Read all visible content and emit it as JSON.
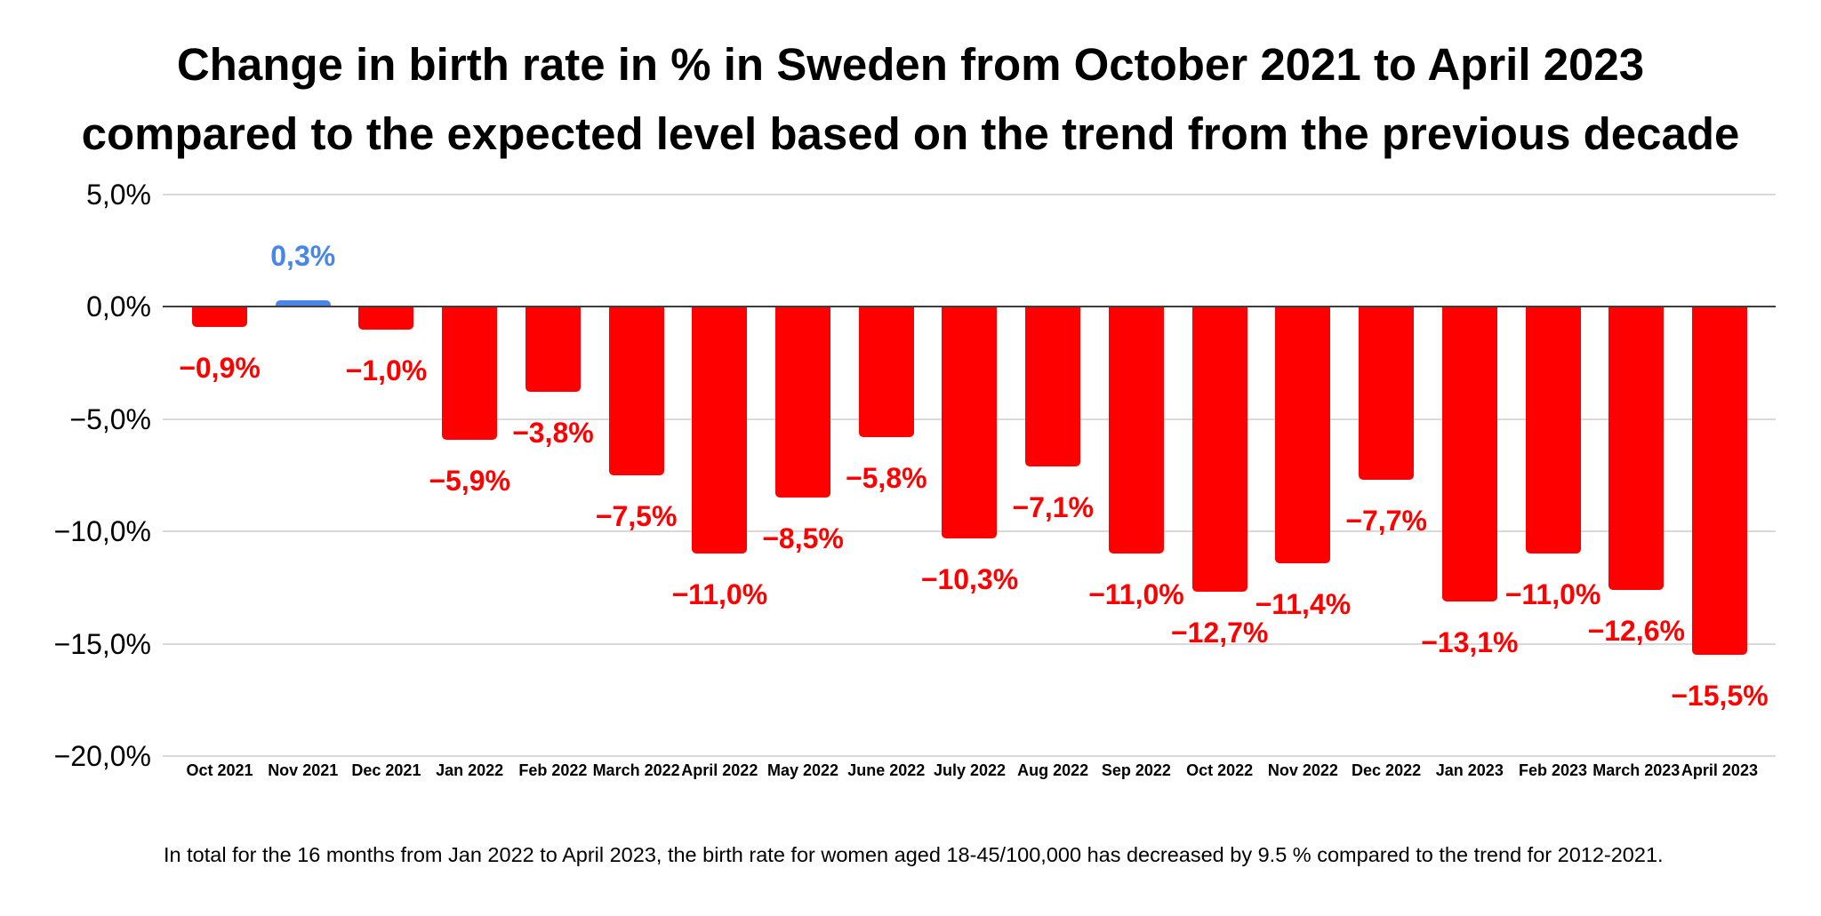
{
  "title": {
    "line1": "Change in birth rate in % in Sweden from October 2021 to April 2023",
    "line2": "compared to the expected level based on the trend from the previous decade"
  },
  "footer_note": "In total for the 16 months from Jan 2022 to April 2023, the birth rate for women aged 18-45/100,000 has decreased by 9.5 % compared to the trend for 2012-2021.",
  "colors": {
    "negative_bar": "#ff0000",
    "positive_bar": "#4a86e8",
    "gridline": "#d9d9d9",
    "zero_line": "#3d3d3d",
    "text": "#000000"
  },
  "chart_data": {
    "type": "bar",
    "title": "Change in birth rate in % in Sweden from October 2021 to April 2023 compared to the expected level based on the trend from the previous decade",
    "xlabel": "",
    "ylabel": "",
    "ylim": [
      -20,
      5
    ],
    "grid": true,
    "legend": false,
    "categories": [
      "Oct 2021",
      "Nov 2021",
      "Dec 2021",
      "Jan 2022",
      "Feb 2022",
      "March 2022",
      "April 2022",
      "May 2022",
      "June 2022",
      "July 2022",
      "Aug 2022",
      "Sep 2022",
      "Oct 2022",
      "Nov 2022",
      "Dec 2022",
      "Jan 2023",
      "Feb 2023",
      "March 2023",
      "April 2023"
    ],
    "values": [
      -0.9,
      0.3,
      -1.0,
      -5.9,
      -3.8,
      -7.5,
      -11.0,
      -8.5,
      -5.8,
      -10.3,
      -7.1,
      -11.0,
      -12.7,
      -11.4,
      -7.7,
      -13.1,
      -11.0,
      -12.6,
      -15.5
    ],
    "value_labels": [
      "−0,9%",
      "0,3%",
      "−1,0%",
      "−5,9%",
      "−3,8%",
      "−7,5%",
      "−11,0%",
      "−8,5%",
      "−5,8%",
      "−10,3%",
      "−7,1%",
      "−11,0%",
      "−12,7%",
      "−11,4%",
      "−7,7%",
      "−13,1%",
      "−11,0%",
      "−12,6%",
      "−15,5%"
    ],
    "y_ticks": [
      {
        "value": 5,
        "label": "5,0%"
      },
      {
        "value": 0,
        "label": "0,0%"
      },
      {
        "value": -5,
        "label": "−5,0%"
      },
      {
        "value": -10,
        "label": "−10,0%"
      },
      {
        "value": -15,
        "label": "−15,0%"
      },
      {
        "value": -20,
        "label": "−20,0%"
      }
    ]
  }
}
